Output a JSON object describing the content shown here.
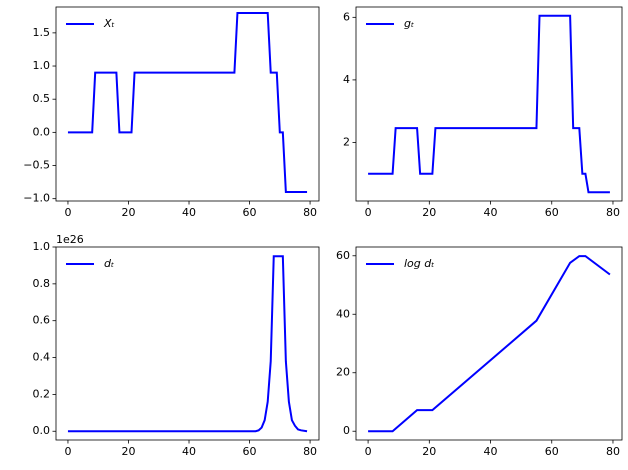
{
  "chart_data": [
    {
      "type": "line",
      "x": [
        0,
        8,
        9,
        16,
        17,
        21,
        22,
        55,
        56,
        66,
        67,
        69,
        70,
        71,
        72,
        79
      ],
      "series": [
        {
          "name": "Xₜ",
          "color": "#0000ff",
          "values": [
            0,
            0,
            0.9,
            0.9,
            0,
            0,
            0.9,
            0.9,
            1.8,
            1.8,
            0.9,
            0.9,
            0,
            0,
            -0.9,
            -0.9
          ]
        }
      ],
      "xlim": [
        -3.95,
        82.95
      ],
      "ylim": [
        -1.035,
        1.89
      ],
      "xticks": [
        0,
        20,
        40,
        60,
        80
      ],
      "yticks": [
        {
          "value": -1,
          "label": "−1.0"
        },
        {
          "value": -0.5,
          "label": "−0.5"
        },
        {
          "value": 0,
          "label": "0.0"
        },
        {
          "value": 0.5,
          "label": "0.5"
        },
        {
          "value": 1,
          "label": "1.0"
        },
        {
          "value": 1.5,
          "label": "1.5"
        }
      ],
      "legend": "upper left"
    },
    {
      "type": "line",
      "x": [
        0,
        8,
        9,
        16,
        17,
        21,
        22,
        55,
        56,
        66,
        67,
        69,
        70,
        71,
        72,
        79
      ],
      "series": [
        {
          "name": "gₜ",
          "color": "#0000ff",
          "values": [
            1,
            1,
            2.46,
            2.46,
            1,
            1,
            2.46,
            2.46,
            6.05,
            6.05,
            2.46,
            2.46,
            1,
            1,
            0.41,
            0.41
          ]
        }
      ],
      "xlim": [
        -3.95,
        82.95
      ],
      "ylim": [
        0.13,
        6.33
      ],
      "xticks": [
        0,
        20,
        40,
        60,
        80
      ],
      "yticks": [
        2,
        4,
        6
      ],
      "legend": "upper left"
    },
    {
      "type": "line",
      "x": [
        0,
        62,
        63,
        64,
        65,
        66,
        67,
        68,
        71,
        72,
        73,
        74,
        75,
        76,
        77,
        79
      ],
      "series": [
        {
          "name": "dₜ",
          "color": "#0000ff",
          "values": [
            0,
            0,
            0.005,
            0.02,
            0.06,
            0.16,
            0.38,
            0.95,
            0.95,
            0.38,
            0.16,
            0.06,
            0.03,
            0.01,
            0.005,
            0
          ]
        }
      ],
      "xlim": [
        -3.95,
        82.95
      ],
      "ylim": [
        -0.0475,
        1.0
      ],
      "xticks": [
        0,
        20,
        40,
        60,
        80
      ],
      "yticks": [
        {
          "value": 0,
          "label": "0.0"
        },
        {
          "value": 0.2,
          "label": "0.2"
        },
        {
          "value": 0.4,
          "label": "0.4"
        },
        {
          "value": 0.6,
          "label": "0.6"
        },
        {
          "value": 0.8,
          "label": "0.8"
        },
        {
          "value": 1,
          "label": "1.0"
        }
      ],
      "y_offset_label": "1e26",
      "legend": "upper left"
    },
    {
      "type": "line",
      "x": [
        0,
        8,
        16,
        21,
        55,
        66,
        69,
        71,
        79
      ],
      "series": [
        {
          "name": "log dₜ",
          "color": "#0000ff",
          "values": [
            0,
            0,
            7.2,
            7.2,
            37.8,
            57.6,
            59.9,
            59.9,
            53.6
          ]
        }
      ],
      "xlim": [
        -3.95,
        82.95
      ],
      "ylim": [
        -3,
        63
      ],
      "xticks": [
        0,
        20,
        40,
        60,
        80
      ],
      "yticks": [
        0,
        20,
        40,
        60
      ],
      "legend": "upper left"
    }
  ]
}
